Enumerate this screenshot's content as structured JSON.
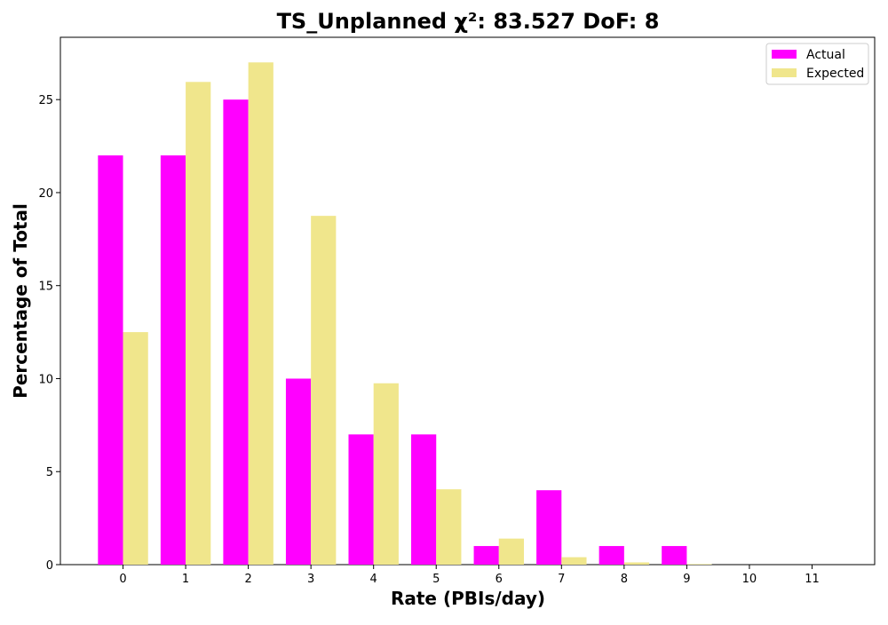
{
  "chart_data": {
    "type": "bar",
    "title": "TS_Unplanned χ²: 83.527 DoF: 8",
    "xlabel": "Rate (PBIs/day)",
    "ylabel": "Percentage of Total",
    "categories": [
      "0",
      "1",
      "2",
      "3",
      "4",
      "5",
      "6",
      "7",
      "8",
      "9",
      "10",
      "11"
    ],
    "series": [
      {
        "name": "Actual",
        "color": "#ff00ff",
        "values": [
          22,
          22,
          25,
          10,
          7,
          7,
          1,
          4,
          1,
          1,
          0,
          0
        ]
      },
      {
        "name": "Expected",
        "color": "#f0e68c",
        "values": [
          12.5,
          25.95,
          27,
          18.75,
          9.75,
          4.05,
          1.4,
          0.4,
          0.12,
          0.03,
          0,
          0
        ]
      }
    ],
    "yticks": [
      0,
      5,
      10,
      15,
      20,
      25
    ],
    "ylim": [
      0,
      28.35
    ],
    "xlim": [
      -1,
      12
    ],
    "grid": false,
    "legend_position": "top-right"
  }
}
